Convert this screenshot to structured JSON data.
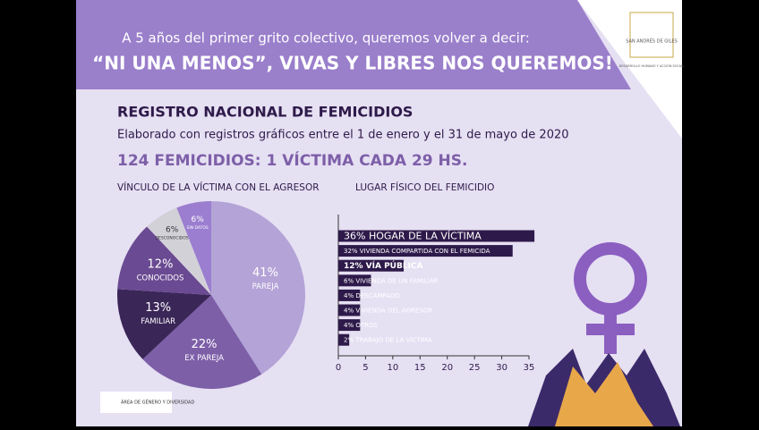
{
  "header": {
    "line1": "A 5 años del primer grito colectivo, queremos volver a decir:",
    "line2": "“NI UNA MENOS”, VIVAS Y LIBRES NOS QUEREMOS!"
  },
  "title": "REGISTRO NACIONAL DE FEMICIDIOS",
  "subtitle": "Elaborado con registros gráficos entre el 1 de enero y el 31 de mayo de 2020",
  "headline": "124 FEMICIDIOS: 1 VÍCTIMA CADA 29 HS.",
  "logo": {
    "name": "SAN ANDRÉS DE GILES",
    "department": "DESARROLLO HUMANO Y ACCIÓN SOCIAL"
  },
  "footer_logo": "ÁREA DE GÉNERO Y DIVERSIDAD",
  "chart_data": [
    {
      "type": "pie",
      "title": "VÍNCULO DE LA VÍCTIMA CON EL AGRESOR",
      "categories": [
        "PAREJA",
        "EX PAREJA",
        "FAMILIAR",
        "CONOCIDOS",
        "DESCONOCIDOS",
        "SIN DATOS"
      ],
      "values": [
        41,
        22,
        13,
        12,
        6,
        6
      ],
      "value_labels": [
        "41%",
        "22%",
        "13%",
        "12%",
        "6%",
        "6%"
      ],
      "colors": [
        "#b3a3d6",
        "#7d5fa8",
        "#3b2658",
        "#6a4a92",
        "#d3d1d8",
        "#9b7ed0"
      ]
    },
    {
      "type": "bar",
      "orientation": "horizontal",
      "title": "LUGAR FÍSICO DEL FEMICIDIO",
      "categories": [
        "36% HOGAR DE LA VÍCTIMA",
        "32% VIVIENDA COMPARTIDA CON EL FEMICIDA",
        "12% VÍA PÚBLICA",
        "6% VIVIENDA DE UN FAMILIAR",
        "4% DESCAMPADO",
        "4% VIVIENDA DEL AGRESOR",
        "4% OTROS",
        "2% TRABAJO DE LA VÍCTIMA"
      ],
      "values": [
        36,
        32,
        12,
        6,
        4,
        4,
        4,
        2
      ],
      "color": "#2e1a4a",
      "xlim": [
        0,
        35
      ],
      "xticks": [
        0,
        5,
        10,
        15,
        20,
        25,
        30,
        35
      ]
    }
  ]
}
